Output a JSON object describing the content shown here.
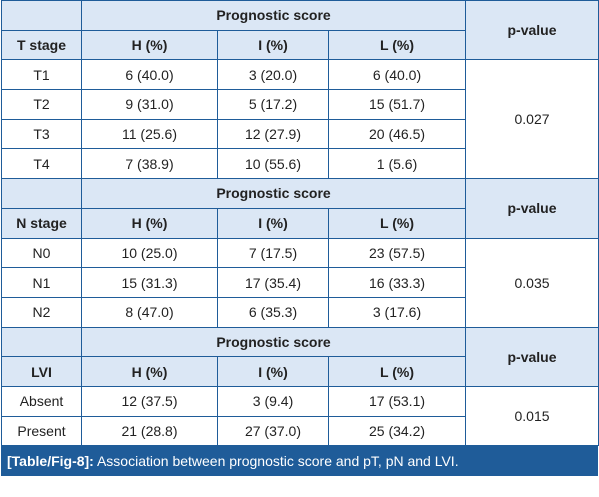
{
  "header_group": "Prognostic score",
  "p_value_label": "p-value",
  "col_h": "H (%)",
  "col_i": "I (%)",
  "col_l": "L (%)",
  "sections": [
    {
      "label": "T stage",
      "p_value": "0.027",
      "rows": [
        [
          "T1",
          "6 (40.0)",
          "3 (20.0)",
          "6 (40.0)"
        ],
        [
          "T2",
          "9 (31.0)",
          "5 (17.2)",
          "15 (51.7)"
        ],
        [
          "T3",
          "11 (25.6)",
          "12 (27.9)",
          "20 (46.5)"
        ],
        [
          "T4",
          "7 (38.9)",
          "10 (55.6)",
          "1 (5.6)"
        ]
      ]
    },
    {
      "label": "N stage",
      "p_value": "0.035",
      "rows": [
        [
          "N0",
          "10 (25.0)",
          "7 (17.5)",
          "23 (57.5)"
        ],
        [
          "N1",
          "15 (31.3)",
          "17 (35.4)",
          "16 (33.3)"
        ],
        [
          "N2",
          "8 (47.0)",
          "6 (35.3)",
          "3 (17.6)"
        ]
      ]
    },
    {
      "label": "LVI",
      "p_value": "0.015",
      "rows": [
        [
          "Absent",
          "12 (37.5)",
          "3 (9.4)",
          "17 (53.1)"
        ],
        [
          "Present",
          "21 (28.8)",
          "27 (37.0)",
          "25 (34.2)"
        ]
      ]
    }
  ],
  "caption": {
    "tag": "[Table/Fig-8]:",
    "text": "Association between prognostic score and pT, pN and LVI."
  },
  "chart_data": {
    "type": "table",
    "columns": [
      "",
      "H (%)",
      "I (%)",
      "L (%)",
      "p-value"
    ],
    "groups": [
      {
        "label": "T stage",
        "p_value": 0.027,
        "rows": [
          {
            "category": "T1",
            "H": [
              6,
              40.0
            ],
            "I": [
              3,
              20.0
            ],
            "L": [
              6,
              40.0
            ]
          },
          {
            "category": "T2",
            "H": [
              9,
              31.0
            ],
            "I": [
              5,
              17.2
            ],
            "L": [
              15,
              51.7
            ]
          },
          {
            "category": "T3",
            "H": [
              11,
              25.6
            ],
            "I": [
              12,
              27.9
            ],
            "L": [
              20,
              46.5
            ]
          },
          {
            "category": "T4",
            "H": [
              7,
              38.9
            ],
            "I": [
              10,
              55.6
            ],
            "L": [
              1,
              5.6
            ]
          }
        ]
      },
      {
        "label": "N stage",
        "p_value": 0.035,
        "rows": [
          {
            "category": "N0",
            "H": [
              10,
              25.0
            ],
            "I": [
              7,
              17.5
            ],
            "L": [
              23,
              57.5
            ]
          },
          {
            "category": "N1",
            "H": [
              15,
              31.3
            ],
            "I": [
              17,
              35.4
            ],
            "L": [
              16,
              33.3
            ]
          },
          {
            "category": "N2",
            "H": [
              8,
              47.0
            ],
            "I": [
              6,
              35.3
            ],
            "L": [
              3,
              17.6
            ]
          }
        ]
      },
      {
        "label": "LVI",
        "p_value": 0.015,
        "rows": [
          {
            "category": "Absent",
            "H": [
              12,
              37.5
            ],
            "I": [
              3,
              9.4
            ],
            "L": [
              17,
              53.1
            ]
          },
          {
            "category": "Present",
            "H": [
              21,
              28.8
            ],
            "I": [
              27,
              37.0
            ],
            "L": [
              25,
              34.2
            ]
          }
        ]
      }
    ]
  }
}
